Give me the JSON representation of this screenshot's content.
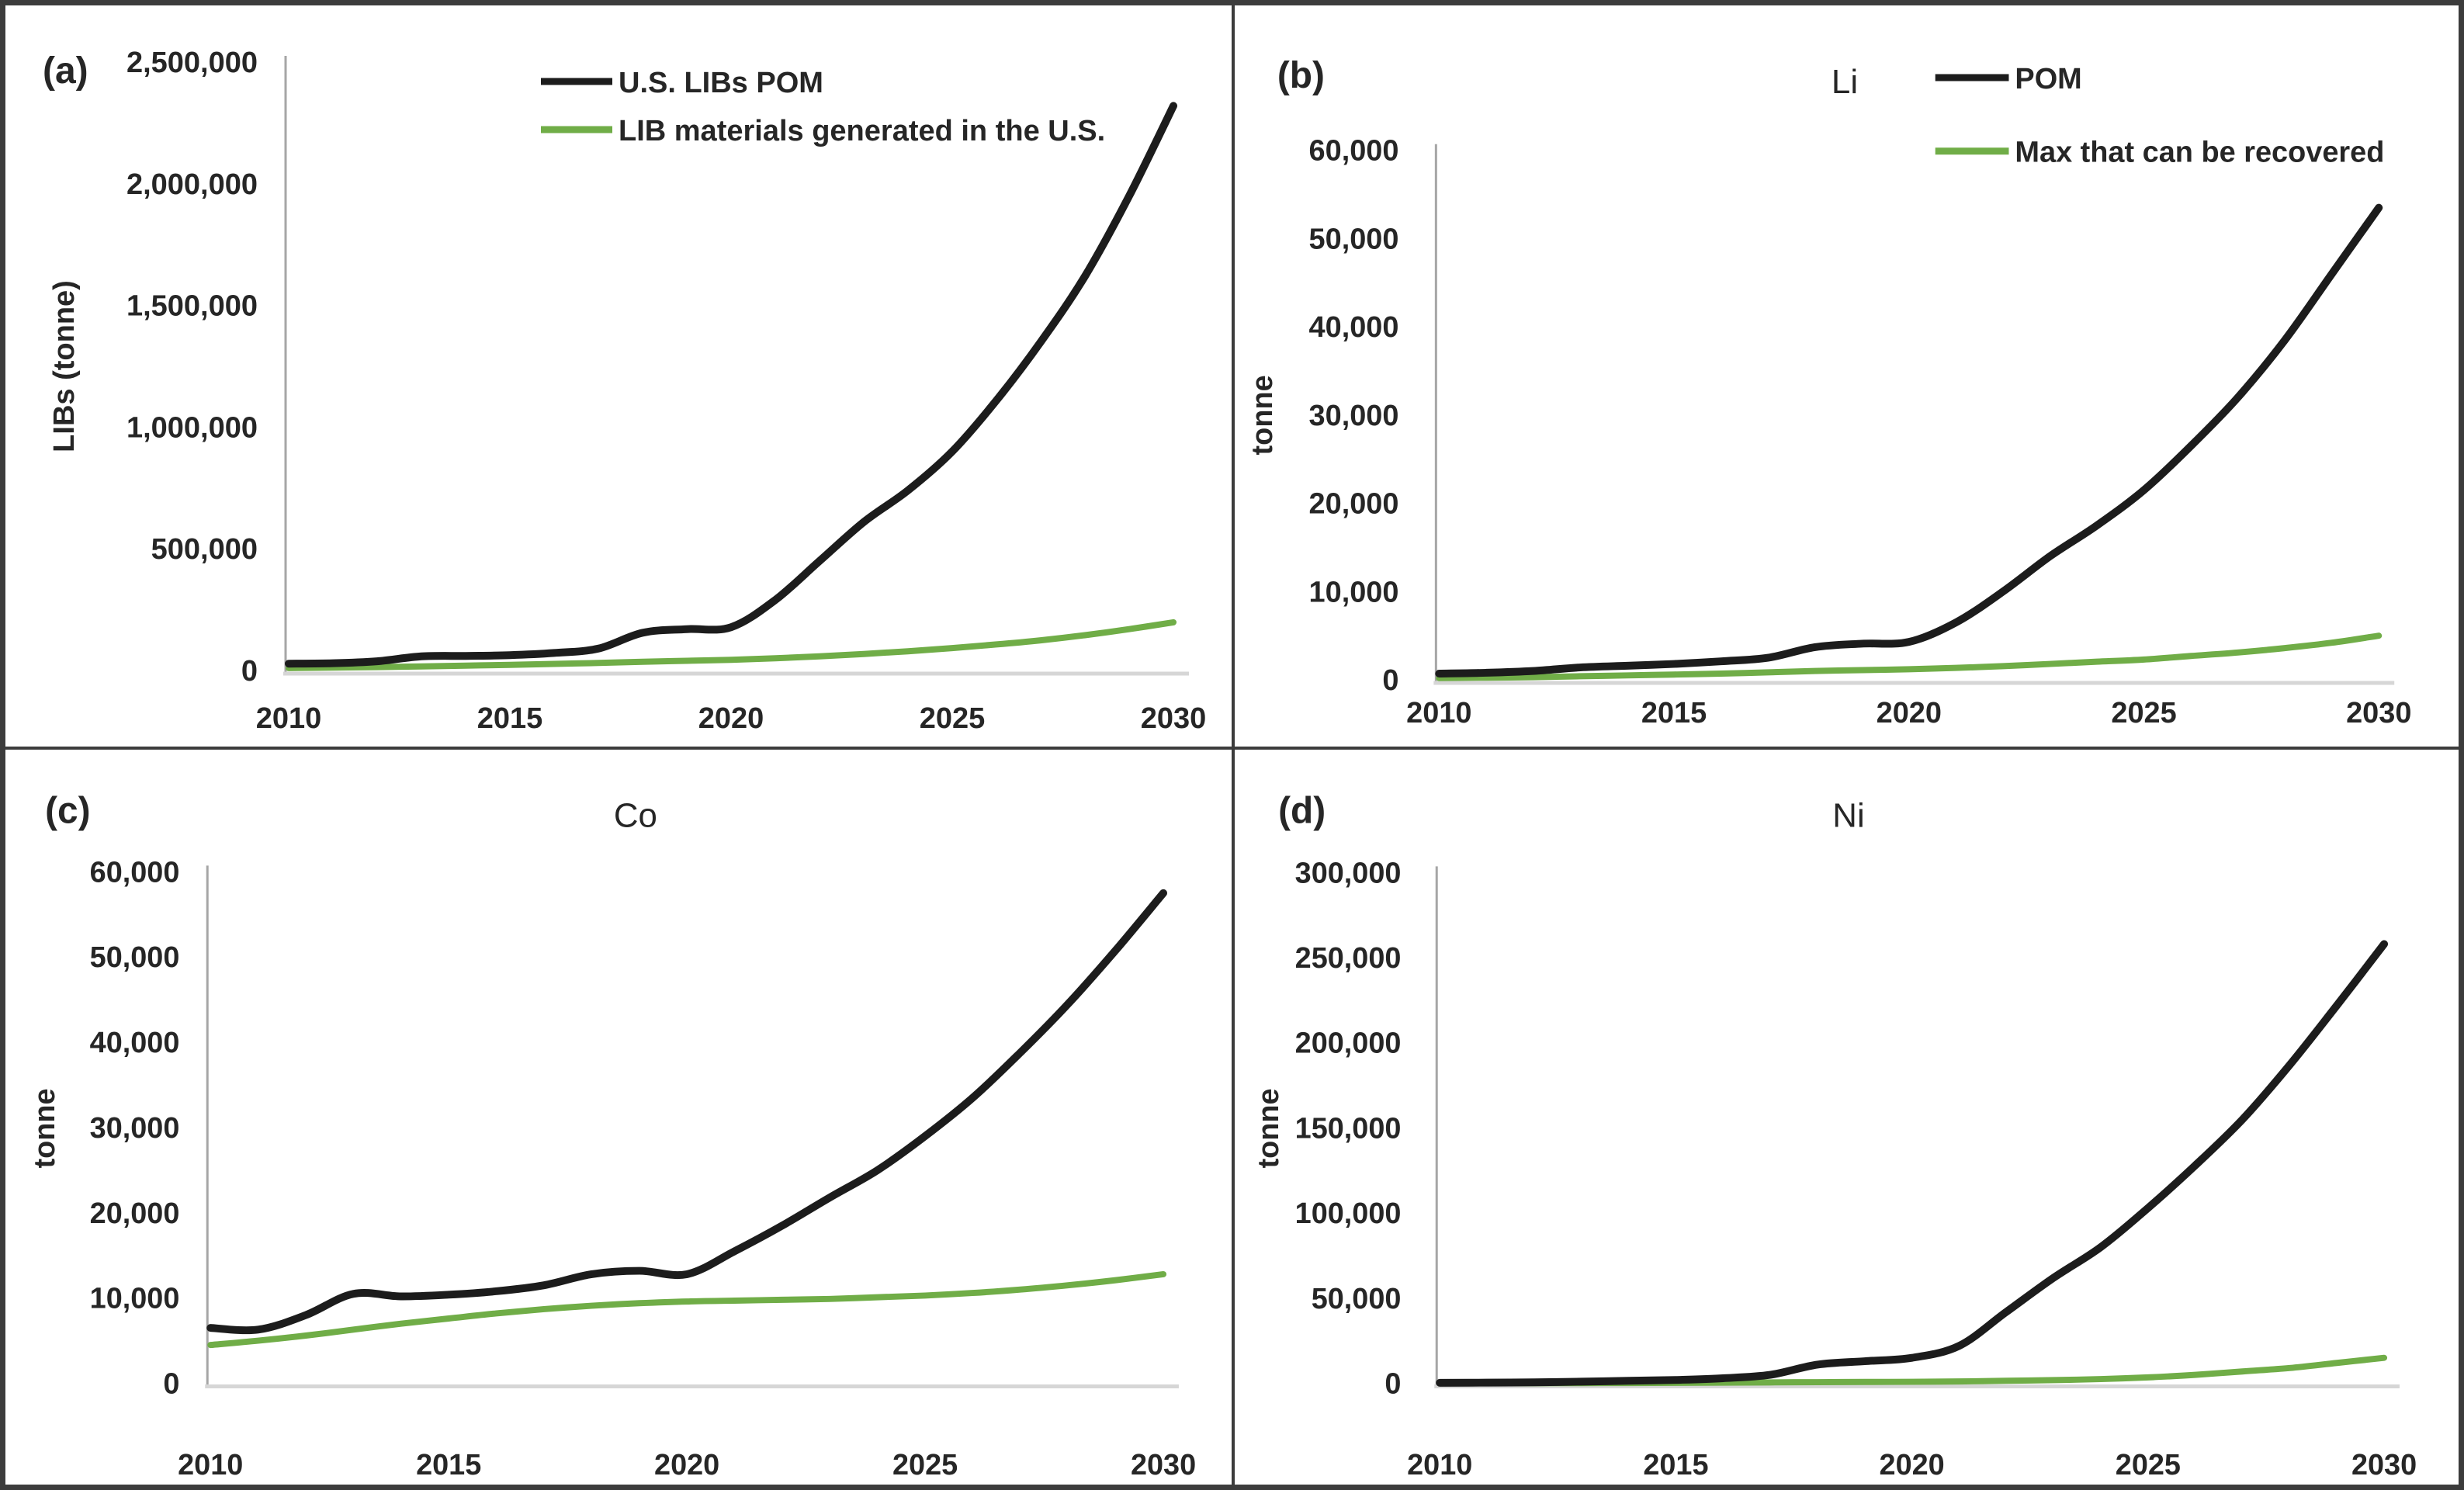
{
  "figure": {
    "background": "#ffffff",
    "border_color": "#3c3c3c",
    "axis_line_color": "#a6a6a6",
    "baseline_color": "#d6d6d6",
    "text_color": "#262626",
    "pom_color": "#1c1c1c",
    "recovered_color": "#70ad47"
  },
  "chart_data": [
    {
      "id": "a",
      "panel_label": "(a)",
      "type": "line",
      "title": "",
      "xlabel": "",
      "ylabel": "LIBs (tonne)",
      "ylim": [
        0,
        2500000
      ],
      "ytick_step": 500000,
      "xlim": [
        2010,
        2030
      ],
      "xticks": [
        "2010",
        "2015",
        "2020",
        "2025",
        "2030"
      ],
      "grid": false,
      "legend_position": "top-inside",
      "years": [
        2010,
        2011,
        2012,
        2013,
        2014,
        2015,
        2016,
        2017,
        2018,
        2019,
        2020,
        2021,
        2022,
        2023,
        2024,
        2025,
        2026,
        2027,
        2028,
        2029,
        2030
      ],
      "series": [
        {
          "name": "U.S. LIBs POM",
          "color": "#1c1c1c",
          "values": [
            28000,
            30000,
            38000,
            58000,
            60000,
            63000,
            72000,
            90000,
            155000,
            170000,
            178000,
            290000,
            450000,
            610000,
            740000,
            900000,
            1110000,
            1350000,
            1620000,
            1950000,
            2320000
          ]
        },
        {
          "name": "LIB materials generated in the U.S.",
          "color": "#70ad47",
          "values": [
            10000,
            12000,
            14000,
            17000,
            20000,
            23000,
            27000,
            31000,
            36000,
            40000,
            44000,
            50000,
            58000,
            68000,
            79000,
            92000,
            107000,
            124000,
            145000,
            170000,
            198000
          ]
        }
      ]
    },
    {
      "id": "b",
      "panel_label": "(b)",
      "type": "line",
      "title": "Li",
      "xlabel": "",
      "ylabel": "tonne",
      "ylim": [
        0,
        60000
      ],
      "ytick_step": 10000,
      "xlim": [
        2010,
        2030
      ],
      "xticks": [
        "2010",
        "2015",
        "2020",
        "2025",
        "2030"
      ],
      "grid": false,
      "legend_position": "top-right",
      "years": [
        2010,
        2011,
        2012,
        2013,
        2014,
        2015,
        2016,
        2017,
        2018,
        2019,
        2020,
        2021,
        2022,
        2023,
        2024,
        2025,
        2026,
        2027,
        2028,
        2029,
        2030
      ],
      "series": [
        {
          "name": "POM",
          "color": "#1c1c1c",
          "values": [
            700,
            800,
            1000,
            1400,
            1600,
            1800,
            2100,
            2500,
            3700,
            4100,
            4300,
            6500,
            10000,
            14000,
            17500,
            21500,
            26500,
            32000,
            38500,
            46000,
            53500
          ]
        },
        {
          "name": "Max that can be recovered",
          "color": "#70ad47",
          "values": [
            200,
            250,
            300,
            400,
            500,
            600,
            700,
            850,
            1000,
            1100,
            1200,
            1350,
            1550,
            1800,
            2050,
            2300,
            2700,
            3100,
            3600,
            4200,
            5000
          ]
        }
      ]
    },
    {
      "id": "c",
      "panel_label": "(c)",
      "type": "line",
      "title": "Co",
      "xlabel": "",
      "ylabel": "tonne",
      "ylim": [
        0,
        60000
      ],
      "ytick_step": 10000,
      "xlim": [
        2010,
        2030
      ],
      "xticks": [
        "2010",
        "2015",
        "2020",
        "2025",
        "2030"
      ],
      "grid": false,
      "legend_position": "none",
      "years": [
        2010,
        2011,
        2012,
        2013,
        2014,
        2015,
        2016,
        2017,
        2018,
        2019,
        2020,
        2021,
        2022,
        2023,
        2024,
        2025,
        2026,
        2027,
        2028,
        2029,
        2030
      ],
      "series": [
        {
          "name": "POM",
          "color": "#1c1c1c",
          "values": [
            6500,
            6300,
            8000,
            10500,
            10200,
            10400,
            10800,
            11500,
            12800,
            13200,
            12800,
            15500,
            18500,
            21800,
            25000,
            29000,
            33500,
            38800,
            44500,
            50800,
            57500
          ]
        },
        {
          "name": "Max that can be recovered",
          "color": "#70ad47",
          "values": [
            4500,
            5000,
            5600,
            6300,
            7000,
            7600,
            8200,
            8700,
            9100,
            9400,
            9600,
            9700,
            9800,
            9900,
            10100,
            10300,
            10600,
            11000,
            11500,
            12100,
            12800
          ]
        }
      ]
    },
    {
      "id": "d",
      "panel_label": "(d)",
      "type": "line",
      "title": "Ni",
      "xlabel": "",
      "ylabel": "tonne",
      "ylim": [
        0,
        300000
      ],
      "ytick_step": 50000,
      "xlim": [
        2010,
        2030
      ],
      "xticks": [
        "2010",
        "2015",
        "2020",
        "2025",
        "2030"
      ],
      "grid": false,
      "legend_position": "none",
      "years": [
        2010,
        2011,
        2012,
        2013,
        2014,
        2015,
        2016,
        2017,
        2018,
        2019,
        2020,
        2021,
        2022,
        2023,
        2024,
        2025,
        2026,
        2027,
        2028,
        2029,
        2030
      ],
      "series": [
        {
          "name": "POM",
          "color": "#1c1c1c",
          "values": [
            300,
            400,
            600,
            1000,
            1500,
            2000,
            3000,
            5000,
            11000,
            13000,
            15000,
            22000,
            42000,
            62000,
            80000,
            103000,
            128000,
            155000,
            187000,
            222000,
            258000
          ]
        },
        {
          "name": "Max that can be recovered",
          "color": "#70ad47",
          "values": [
            50,
            70,
            100,
            150,
            200,
            300,
            400,
            550,
            700,
            800,
            900,
            1100,
            1500,
            1900,
            2500,
            3500,
            5000,
            7000,
            9000,
            12000,
            15000
          ]
        }
      ]
    }
  ]
}
